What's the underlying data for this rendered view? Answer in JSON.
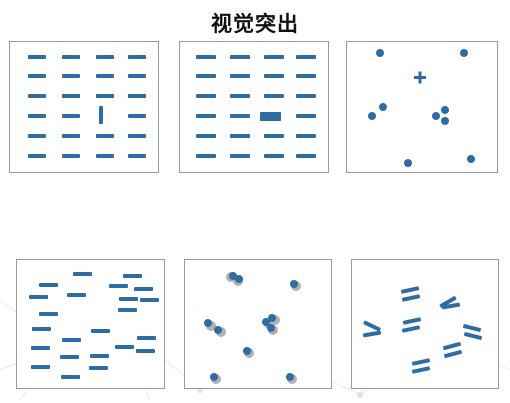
{
  "title": "视觉突出",
  "colors": {
    "mark": "#2e6da4",
    "border": "#9a9a9a"
  },
  "panels": [
    {
      "name": "orientation-popout",
      "target": "vertical-bar"
    },
    {
      "name": "size-popout",
      "target": "wide-bar"
    },
    {
      "name": "shape-popout",
      "target": "plus-sign"
    },
    {
      "name": "irregular-dashes"
    },
    {
      "name": "shaded-dots"
    },
    {
      "name": "slanted-dashes"
    }
  ]
}
